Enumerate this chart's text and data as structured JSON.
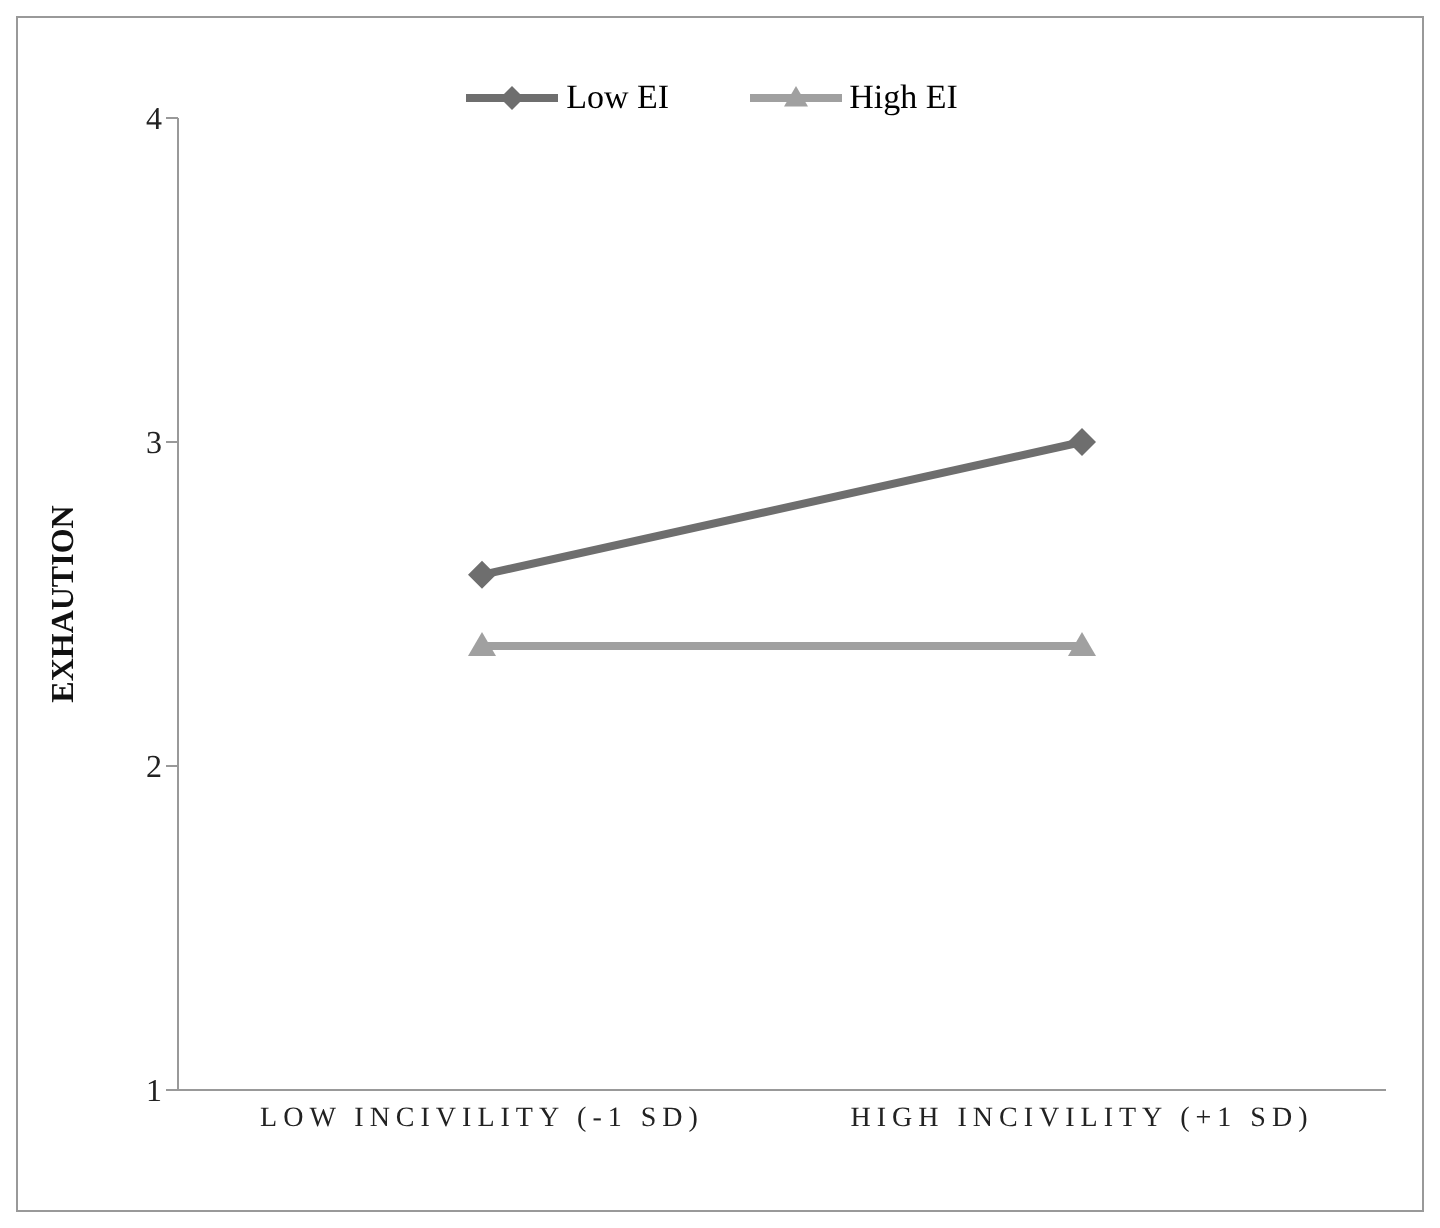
{
  "chart_data": {
    "type": "line",
    "ylabel": "EXHAUTION",
    "categories": [
      "LOW INCIVILITY (-1 SD)",
      "HIGH INCIVILITY (+1 SD)"
    ],
    "series": [
      {
        "name": "Low EI",
        "color": "#6e6e6e",
        "values": [
          2.59,
          3.0
        ],
        "marker": "diamond"
      },
      {
        "name": "High EI",
        "color": "#a0a0a0",
        "values": [
          2.37,
          2.37
        ],
        "marker": "triangle"
      }
    ],
    "ylim": [
      1,
      4
    ],
    "yticks": [
      1,
      2,
      3,
      4
    ],
    "grid": false,
    "legend": "top",
    "line_style": "solid"
  }
}
